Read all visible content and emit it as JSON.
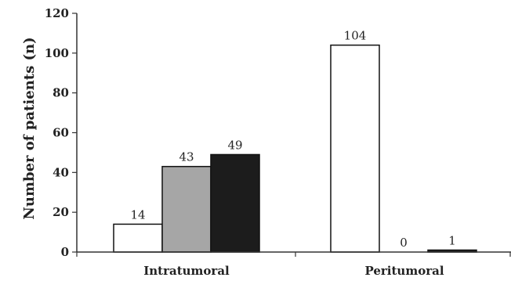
{
  "chart_data": {
    "type": "bar",
    "title": "",
    "xlabel": "",
    "ylabel": "Number of patients (n)",
    "ylim": [
      0,
      120
    ],
    "yticks": [
      0,
      20,
      40,
      60,
      80,
      100,
      120
    ],
    "grid": false,
    "legend": "none",
    "categories": [
      "Intratumoral",
      "Peritumoral"
    ],
    "series": [
      {
        "color": "#ffffff",
        "values": [
          14,
          104
        ]
      },
      {
        "color": "#a6a6a6",
        "values": [
          43,
          0
        ]
      },
      {
        "color": "#1c1c1c",
        "values": [
          49,
          1
        ]
      }
    ],
    "data_labels": [
      [
        "14",
        "43",
        "49"
      ],
      [
        "104",
        "0",
        "1"
      ]
    ]
  }
}
